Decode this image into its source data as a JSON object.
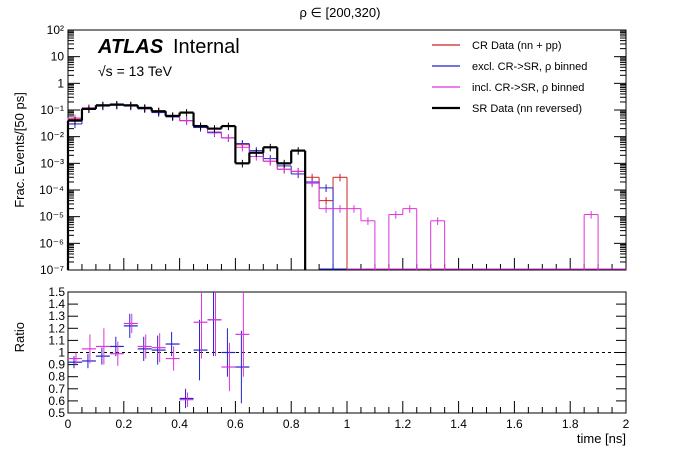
{
  "title": "ρ ∈ [200,320)",
  "atlas_label": "ATLAS",
  "atlas_sub": "Internal",
  "energy_label": "√s = 13 TeV",
  "colors": {
    "cr_data": "#cc2222",
    "excl": "#2222cc",
    "incl": "#dd33dd",
    "sr": "#000000",
    "ratio_line": "#000000"
  },
  "chart_data": [
    {
      "type": "line",
      "panel": "main",
      "ylabel": "Frac. Events/[50 ps]",
      "yscale": "log",
      "ylim": [
        1e-07,
        100
      ],
      "xlim": [
        0,
        2
      ],
      "bin_width": 0.05,
      "x_tick_labels": [],
      "y_tick_labels": [
        "10⁻⁷",
        "10⁻⁶",
        "10⁻⁵",
        "10⁻⁴",
        "10⁻³",
        "10⁻²",
        "10⁻¹",
        "1",
        "10",
        "10²"
      ],
      "legend": [
        "CR Data (nn + pp)",
        "excl. CR->SR, ρ binned",
        "incl. CR->SR, ρ binned",
        "SR Data (nn reversed)"
      ],
      "series": [
        {
          "name": "CR Data (nn + pp)",
          "x": [
            0.025,
            0.075,
            0.125,
            0.175,
            0.225,
            0.275,
            0.325,
            0.375,
            0.425,
            0.475,
            0.525,
            0.575,
            0.625,
            0.675,
            0.725,
            0.775,
            0.825,
            0.875,
            0.925,
            0.975
          ],
          "values": [
            0.045,
            0.12,
            0.15,
            0.16,
            0.15,
            0.12,
            0.09,
            0.06,
            0.04,
            0.025,
            0.015,
            0.009,
            0.005,
            0.0025,
            0.0012,
            0.0006,
            0.0005,
            0.0003,
            4e-05,
            0.0003
          ]
        },
        {
          "name": "excl. CR->SR, ρ binned",
          "x": [
            0.025,
            0.075,
            0.125,
            0.175,
            0.225,
            0.275,
            0.325,
            0.375,
            0.425,
            0.475,
            0.525,
            0.575,
            0.625,
            0.675,
            0.725,
            0.775,
            0.825,
            0.875,
            0.925
          ],
          "values": [
            0.03,
            0.11,
            0.14,
            0.15,
            0.14,
            0.11,
            0.08,
            0.055,
            0.04,
            0.022,
            0.014,
            0.009,
            0.0055,
            0.003,
            0.0015,
            0.0008,
            0.0004,
            0.0002,
            0.00012
          ]
        },
        {
          "name": "incl. CR->SR, ρ binned",
          "x": [
            0.025,
            0.075,
            0.125,
            0.175,
            0.225,
            0.275,
            0.325,
            0.375,
            0.425,
            0.475,
            0.525,
            0.575,
            0.625,
            0.675,
            0.725,
            0.775,
            0.825,
            0.875,
            0.925,
            0.975,
            1.025,
            1.075,
            1.175,
            1.225,
            1.325,
            1.875
          ],
          "values": [
            0.05,
            0.12,
            0.15,
            0.16,
            0.15,
            0.12,
            0.09,
            0.06,
            0.04,
            0.025,
            0.015,
            0.009,
            0.004,
            0.0018,
            0.0012,
            0.0006,
            0.0005,
            0.00018,
            2e-05,
            2e-05,
            2e-05,
            7e-06,
            1.2e-05,
            2e-05,
            7e-06,
            1.2e-05
          ]
        },
        {
          "name": "SR Data (nn reversed)",
          "x": [
            0.025,
            0.075,
            0.125,
            0.175,
            0.225,
            0.275,
            0.325,
            0.375,
            0.425,
            0.475,
            0.525,
            0.575,
            0.625,
            0.675,
            0.725,
            0.775,
            0.825
          ],
          "values": [
            0.04,
            0.11,
            0.15,
            0.16,
            0.15,
            0.12,
            0.09,
            0.06,
            0.08,
            0.025,
            0.02,
            0.025,
            0.001,
            0.0025,
            0.004,
            0.001,
            0.003
          ]
        }
      ]
    },
    {
      "type": "scatter",
      "panel": "ratio",
      "ylabel": "Ratio",
      "xlabel": "time [ns]",
      "xlim": [
        0,
        2
      ],
      "ylim": [
        0.5,
        1.5
      ],
      "x_tick_labels": [
        "0",
        "0.2",
        "0.4",
        "0.6",
        "0.8",
        "1",
        "1.2",
        "1.4",
        "1.6",
        "1.8",
        "2"
      ],
      "y_tick_labels": [
        "0.5",
        "0.6",
        "0.7",
        "0.8",
        "0.9",
        "1",
        "1.1",
        "1.2",
        "1.3",
        "1.4",
        "1.5"
      ],
      "reference_line": 1,
      "series": [
        {
          "name": "excl. CR->SR, ρ binned",
          "x": [
            0.025,
            0.075,
            0.125,
            0.175,
            0.225,
            0.275,
            0.325,
            0.375,
            0.425,
            0.475,
            0.525,
            0.575,
            0.625
          ],
          "values": [
            0.92,
            0.93,
            0.97,
            1.05,
            1.22,
            1.03,
            1.02,
            1.07,
            0.62,
            1.02,
            1.27,
            1.0,
            0.88
          ],
          "err": [
            0.05,
            0.06,
            0.07,
            0.08,
            0.1,
            0.1,
            0.12,
            0.1,
            0.08,
            0.25,
            0.3,
            0.2,
            0.3
          ]
        },
        {
          "name": "incl. CR->SR, ρ binned",
          "x": [
            0.025,
            0.075,
            0.125,
            0.175,
            0.225,
            0.275,
            0.325,
            0.375,
            0.425,
            0.475,
            0.525,
            0.575,
            0.625
          ],
          "values": [
            0.95,
            1.03,
            1.05,
            0.99,
            1.24,
            1.05,
            1.04,
            0.95,
            0.61,
            1.25,
            1.27,
            0.88,
            1.15
          ],
          "err": [
            0.05,
            0.12,
            0.15,
            0.1,
            0.08,
            0.1,
            0.12,
            0.1,
            0.06,
            0.3,
            0.3,
            0.2,
            0.35
          ]
        }
      ]
    }
  ]
}
